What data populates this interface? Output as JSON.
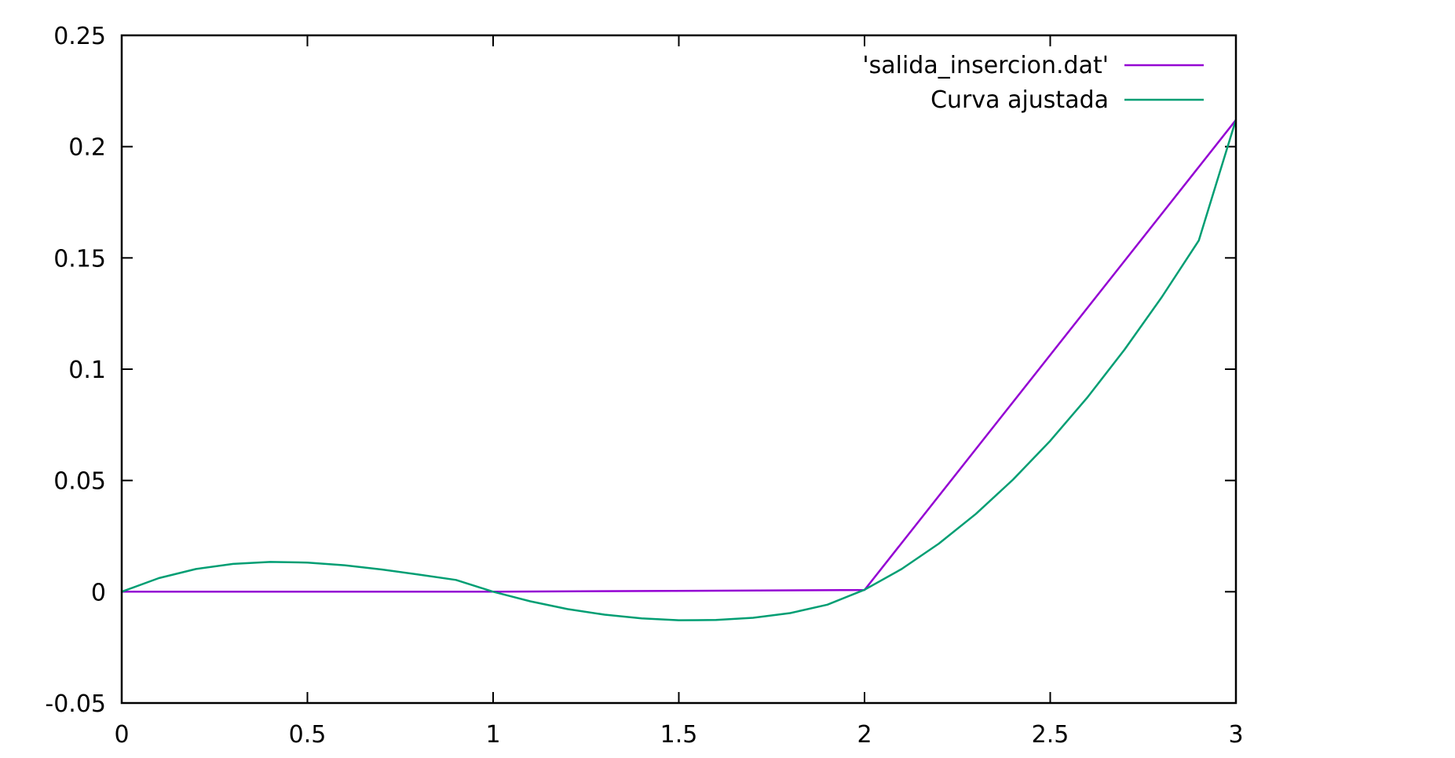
{
  "chart_data": {
    "type": "line",
    "title": "",
    "xlabel": "",
    "ylabel": "",
    "xlim": [
      0,
      3
    ],
    "ylim": [
      -0.05,
      0.25
    ],
    "xticks": [
      0,
      0.5,
      1,
      1.5,
      2,
      2.5,
      3
    ],
    "xtick_labels": [
      "0",
      "0.5",
      "1",
      "1.5",
      "2",
      "2.5",
      "3"
    ],
    "yticks": [
      -0.05,
      0,
      0.05,
      0.1,
      0.15,
      0.2,
      0.25
    ],
    "ytick_labels": [
      "-0.05",
      "0",
      "0.05",
      "0.1",
      "0.15",
      "0.2",
      "0.25"
    ],
    "grid": false,
    "legend_position": "top-right",
    "series": [
      {
        "name": "'salida_insercion.dat'",
        "color": "#9400d3",
        "x": [
          0,
          1,
          2,
          3
        ],
        "y": [
          0,
          0,
          0.0008,
          0.212
        ]
      },
      {
        "name": "Curva ajustada",
        "color": "#009e73",
        "x": [
          0,
          0.1,
          0.2,
          0.3,
          0.4,
          0.5,
          0.6,
          0.7,
          0.8,
          0.9,
          1.0,
          1.1,
          1.2,
          1.3,
          1.4,
          1.5,
          1.6,
          1.7,
          1.8,
          1.9,
          2.0,
          2.1,
          2.2,
          2.3,
          2.4,
          2.5,
          2.6,
          2.7,
          2.8,
          2.9,
          3.0
        ],
        "y": [
          0,
          0.0061,
          0.0102,
          0.0125,
          0.0134,
          0.0131,
          0.0119,
          0.01,
          0.0077,
          0.0053,
          0.0,
          -0.0043,
          -0.0078,
          -0.0103,
          -0.012,
          -0.0128,
          -0.0127,
          -0.0117,
          -0.0096,
          -0.0058,
          0.0009,
          0.0102,
          0.0216,
          0.035,
          0.0504,
          0.0678,
          0.0873,
          0.1088,
          0.1323,
          0.1578,
          0.2121
        ]
      }
    ]
  }
}
